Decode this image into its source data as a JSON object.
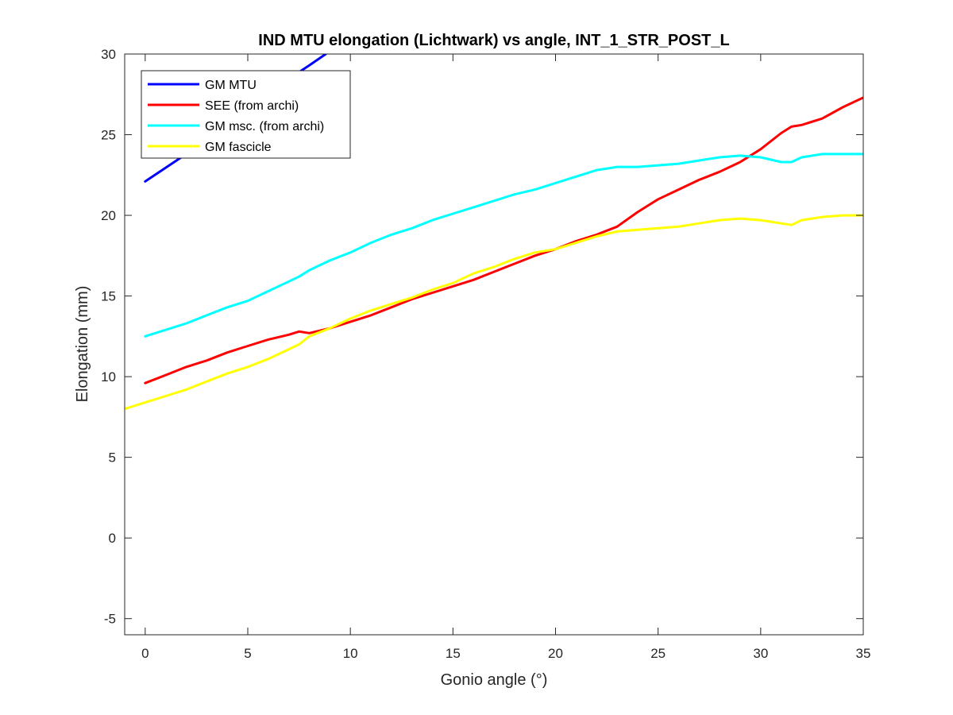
{
  "chart_data": {
    "type": "line",
    "title": "IND MTU elongation (Lichtwark) vs angle, INT_1_STR_POST_L",
    "xlabel": "Gonio angle (°)",
    "ylabel": "Elongation (mm)",
    "xlim": [
      -1,
      35
    ],
    "ylim": [
      -6,
      30
    ],
    "xticks": [
      0,
      5,
      10,
      15,
      20,
      25,
      30,
      35
    ],
    "yticks": [
      -5,
      0,
      5,
      10,
      15,
      20,
      25,
      30
    ],
    "grid": false,
    "legend_position": "top-left",
    "series": [
      {
        "name": "GM MTU",
        "color": "#0000ff",
        "x": [
          0,
          2,
          4,
          6,
          8,
          8.8
        ],
        "y": [
          22.1,
          23.8,
          25.7,
          27.6,
          29.3,
          30.0
        ]
      },
      {
        "name": "SEE (from archi)",
        "color": "#ff0000",
        "x": [
          0,
          1,
          2,
          3,
          4,
          5,
          6,
          7,
          7.5,
          8,
          9,
          10,
          11,
          12,
          13,
          14,
          15,
          16,
          17,
          18,
          19,
          20,
          21,
          22,
          23,
          24,
          25,
          26,
          27,
          28,
          29,
          30,
          31,
          31.5,
          32,
          33,
          34,
          35
        ],
        "y": [
          9.6,
          10.1,
          10.6,
          11.0,
          11.5,
          11.9,
          12.3,
          12.6,
          12.8,
          12.7,
          13.0,
          13.4,
          13.8,
          14.3,
          14.8,
          15.2,
          15.6,
          16.0,
          16.5,
          17.0,
          17.5,
          17.9,
          18.4,
          18.8,
          19.3,
          20.2,
          21.0,
          21.6,
          22.2,
          22.7,
          23.3,
          24.1,
          25.1,
          25.5,
          25.6,
          26.0,
          26.7,
          27.3
        ]
      },
      {
        "name": "GM msc. (from archi)",
        "color": "#00ffff",
        "x": [
          0,
          1,
          2,
          3,
          4,
          5,
          6,
          7,
          7.5,
          8,
          9,
          10,
          11,
          12,
          13,
          14,
          15,
          16,
          17,
          18,
          19,
          20,
          21,
          22,
          23,
          24,
          25,
          26,
          27,
          28,
          29,
          30,
          31,
          31.5,
          32,
          33,
          34,
          35
        ],
        "y": [
          12.5,
          12.9,
          13.3,
          13.8,
          14.3,
          14.7,
          15.3,
          15.9,
          16.2,
          16.6,
          17.2,
          17.7,
          18.3,
          18.8,
          19.2,
          19.7,
          20.1,
          20.5,
          20.9,
          21.3,
          21.6,
          22.0,
          22.4,
          22.8,
          23.0,
          23.0,
          23.1,
          23.2,
          23.4,
          23.6,
          23.7,
          23.6,
          23.3,
          23.3,
          23.6,
          23.8,
          23.8,
          23.8
        ]
      },
      {
        "name": "GM fascicle",
        "color": "#ffff00",
        "x": [
          -1,
          0,
          1,
          2,
          3,
          4,
          5,
          6,
          7,
          7.5,
          8,
          9,
          10,
          11,
          12,
          13,
          14,
          15,
          16,
          17,
          18,
          19,
          20,
          21,
          22,
          23,
          24,
          25,
          26,
          27,
          28,
          29,
          30,
          31,
          31.5,
          32,
          33,
          34,
          35
        ],
        "y": [
          8.0,
          8.4,
          8.8,
          9.2,
          9.7,
          10.2,
          10.6,
          11.1,
          11.7,
          12.0,
          12.5,
          13.0,
          13.6,
          14.1,
          14.5,
          14.9,
          15.4,
          15.8,
          16.4,
          16.8,
          17.3,
          17.7,
          17.9,
          18.3,
          18.7,
          19.0,
          19.1,
          19.2,
          19.3,
          19.5,
          19.7,
          19.8,
          19.7,
          19.5,
          19.4,
          19.7,
          19.9,
          20.0,
          20.0
        ]
      }
    ]
  }
}
